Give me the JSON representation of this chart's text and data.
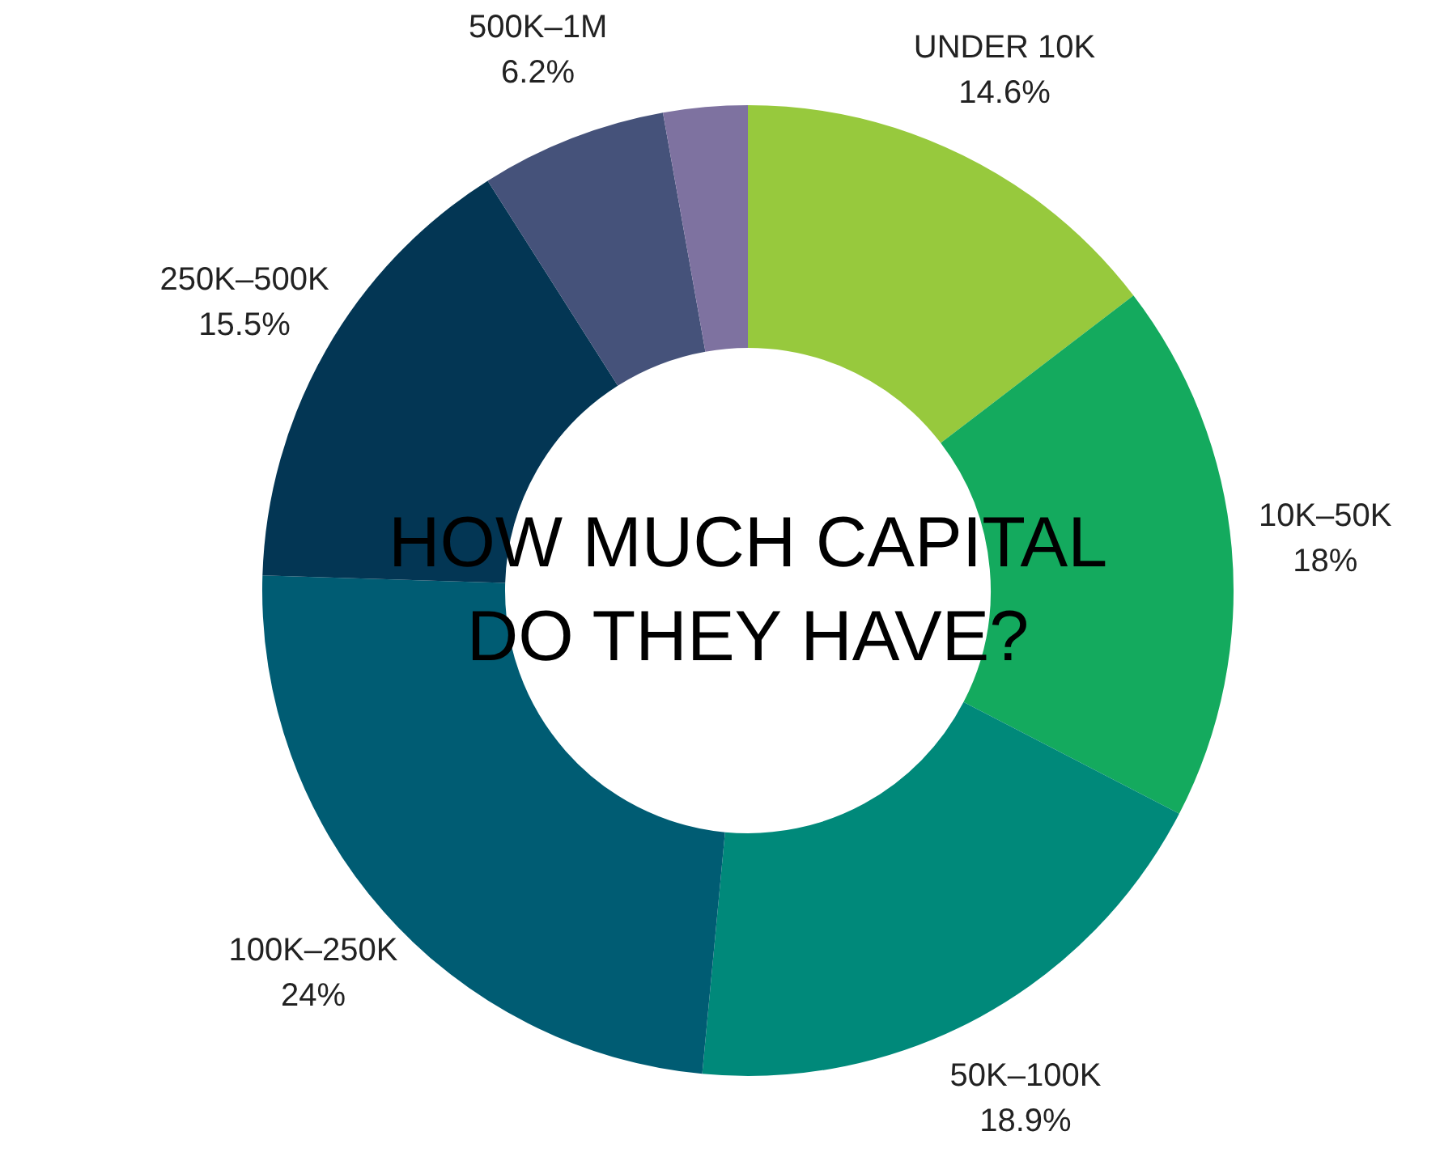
{
  "chart_data": {
    "type": "donut",
    "title": "HOW MUCH CAPITAL DO THEY HAVE?",
    "categories": [
      "UNDER 10K",
      "10K–50K",
      "50K–100K",
      "100K–250K",
      "250K–500K",
      "500K–1M",
      null
    ],
    "values": [
      14.6,
      18,
      18.9,
      24,
      15.5,
      6.2,
      2.8
    ],
    "value_labels": [
      "14.6%",
      "18%",
      "18.9%",
      "24%",
      "15.5%",
      "6.2%",
      null
    ],
    "colors": [
      "#97c93d",
      "#14aa5e",
      "#00897a",
      "#005c73",
      "#033654",
      "#45527a",
      "#7e72a0"
    ],
    "legend": false
  }
}
